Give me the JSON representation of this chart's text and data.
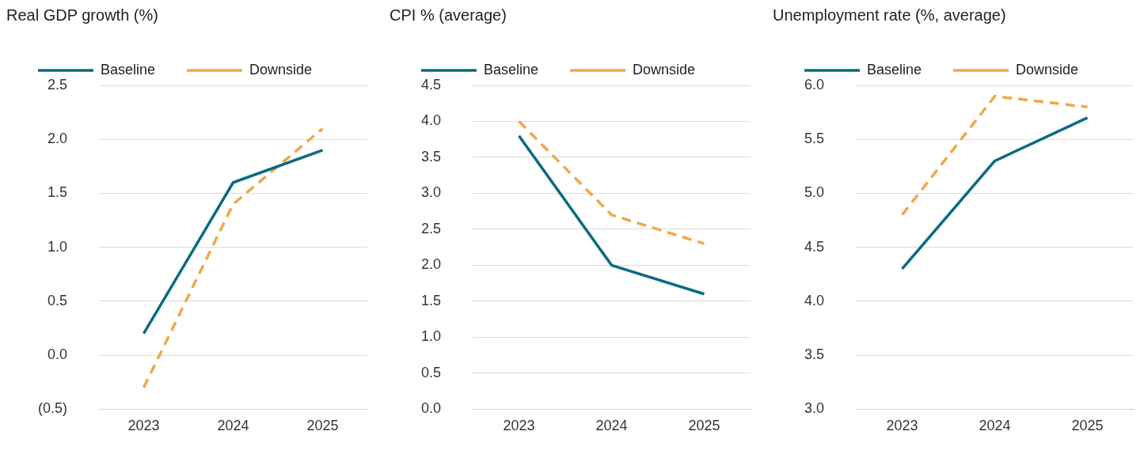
{
  "chart_data": [
    {
      "type": "line",
      "title": "Real GDP growth (%)",
      "categories": [
        "2023",
        "2024",
        "2025"
      ],
      "series": [
        {
          "name": "Baseline",
          "color": "#0b6a82",
          "values": [
            0.2,
            1.6,
            1.9
          ],
          "line_style": "solid"
        },
        {
          "name": "Downside",
          "color": "#f0a848",
          "values": [
            -0.3,
            1.4,
            2.1
          ],
          "line_style": "dashed"
        }
      ],
      "ylim": [
        -0.5,
        2.5
      ],
      "yticks": [
        {
          "value": -0.5,
          "label": "(0.5)"
        },
        {
          "value": 0,
          "label": "0.0"
        },
        {
          "value": 0.5,
          "label": "0.5"
        },
        {
          "value": 1,
          "label": "1.0"
        },
        {
          "value": 1.5,
          "label": "1.5"
        },
        {
          "value": 2,
          "label": "2.0"
        },
        {
          "value": 2.5,
          "label": "2.5"
        }
      ],
      "grid": "y",
      "legend": "top left",
      "marker": "none"
    },
    {
      "type": "line",
      "title": "CPI % (average)",
      "categories": [
        "2023",
        "2024",
        "2025"
      ],
      "series": [
        {
          "name": "Baseline",
          "color": "#0b6a82",
          "values": [
            3.8,
            2.0,
            1.6
          ],
          "line_style": "solid"
        },
        {
          "name": "Downside",
          "color": "#f0a848",
          "values": [
            4.0,
            2.7,
            2.3
          ],
          "line_style": "dashed"
        }
      ],
      "ylim": [
        0,
        4.5
      ],
      "yticks": [
        {
          "value": 0,
          "label": "0.0"
        },
        {
          "value": 0.5,
          "label": "0.5"
        },
        {
          "value": 1,
          "label": "1.0"
        },
        {
          "value": 1.5,
          "label": "1.5"
        },
        {
          "value": 2,
          "label": "2.0"
        },
        {
          "value": 2.5,
          "label": "2.5"
        },
        {
          "value": 3,
          "label": "3.0"
        },
        {
          "value": 3.5,
          "label": "3.5"
        },
        {
          "value": 4,
          "label": "4.0"
        },
        {
          "value": 4.5,
          "label": "4.5"
        }
      ],
      "grid": "y",
      "legend": "top left",
      "marker": "none"
    },
    {
      "type": "line",
      "title": "Unemployment rate (%, average)",
      "categories": [
        "2023",
        "2024",
        "2025"
      ],
      "series": [
        {
          "name": "Baseline",
          "color": "#0b6a82",
          "values": [
            4.3,
            5.3,
            5.7
          ],
          "line_style": "solid"
        },
        {
          "name": "Downside",
          "color": "#f0a848",
          "values": [
            4.8,
            5.9,
            5.8
          ],
          "line_style": "dashed"
        }
      ],
      "ylim": [
        3,
        6
      ],
      "yticks": [
        {
          "value": 3,
          "label": "3.0"
        },
        {
          "value": 3.5,
          "label": "3.5"
        },
        {
          "value": 4,
          "label": "4.0"
        },
        {
          "value": 4.5,
          "label": "4.5"
        },
        {
          "value": 5,
          "label": "5.0"
        },
        {
          "value": 5.5,
          "label": "5.5"
        },
        {
          "value": 6,
          "label": "6.0"
        }
      ],
      "grid": "y",
      "legend": "top left",
      "marker": "none"
    }
  ]
}
